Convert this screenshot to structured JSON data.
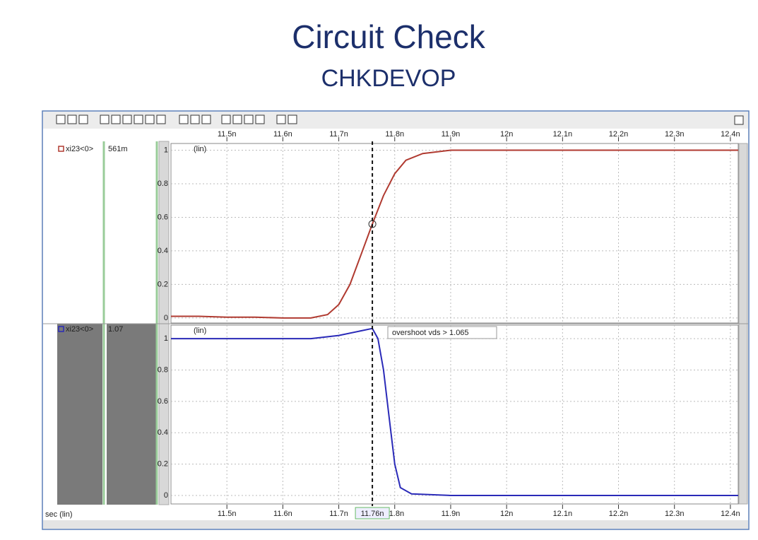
{
  "header": {
    "title": "Circuit Check",
    "subtitle": "CHKDEVOP"
  },
  "chart_data": [
    {
      "type": "line",
      "y_label": "(lin)",
      "x": [
        11.4,
        11.45,
        11.5,
        11.55,
        11.6,
        11.65,
        11.68,
        11.7,
        11.72,
        11.74,
        11.76,
        11.78,
        11.8,
        11.82,
        11.85,
        11.9,
        12.0,
        12.1,
        12.2,
        12.3,
        12.414
      ],
      "series": [
        {
          "name": "xi23<0>",
          "readout": "561m",
          "color": "#b03a30",
          "values": [
            0.01,
            0.01,
            0.005,
            0.005,
            0.0,
            0.0,
            0.02,
            0.08,
            0.2,
            0.38,
            0.56,
            0.73,
            0.86,
            0.94,
            0.98,
            1.0,
            1.0,
            1.0,
            1.0,
            1.0,
            1.0
          ]
        }
      ],
      "xlim": [
        11.4,
        12.414
      ],
      "xticks": [
        {
          "value": 11.5,
          "label": "11.5n"
        },
        {
          "value": 11.6,
          "label": "11.6n"
        },
        {
          "value": 11.7,
          "label": "11.7n"
        },
        {
          "value": 11.8,
          "label": "11.8n"
        },
        {
          "value": 11.9,
          "label": "11.9n"
        },
        {
          "value": 12.0,
          "label": "12n"
        },
        {
          "value": 12.1,
          "label": "12.1n"
        },
        {
          "value": 12.2,
          "label": "12.2n"
        },
        {
          "value": 12.3,
          "label": "12.3n"
        },
        {
          "value": 12.4,
          "label": "12.4n"
        }
      ],
      "ylim": [
        -0.03,
        1.04
      ],
      "yticks": [
        0,
        0.2,
        0.4,
        0.6,
        0.8,
        1
      ],
      "grid": true
    },
    {
      "type": "line",
      "y_label": "(lin)",
      "x_label": "sec (lin)",
      "x": [
        11.4,
        11.5,
        11.6,
        11.65,
        11.7,
        11.74,
        11.76,
        11.77,
        11.78,
        11.79,
        11.8,
        11.81,
        11.83,
        11.9,
        12.0,
        12.4,
        12.414
      ],
      "series": [
        {
          "name": "xi23<0>",
          "readout": "1.07",
          "color": "#2a2ab8",
          "values": [
            1.0,
            1.0,
            1.0,
            1.0,
            1.02,
            1.05,
            1.065,
            1.0,
            0.8,
            0.5,
            0.2,
            0.05,
            0.01,
            0.0,
            0.0,
            0.0,
            0.0
          ]
        }
      ],
      "xlim": [
        11.4,
        12.414
      ],
      "xticks": [
        {
          "value": 11.5,
          "label": "11.5n"
        },
        {
          "value": 11.6,
          "label": "11.6n"
        },
        {
          "value": 11.7,
          "label": "11.7n"
        },
        {
          "value": 11.8,
          "label": "11.8n"
        },
        {
          "value": 11.9,
          "label": "11.9n"
        },
        {
          "value": 12.0,
          "label": "12n"
        },
        {
          "value": 12.1,
          "label": "12.1n"
        },
        {
          "value": 12.2,
          "label": "12.2n"
        },
        {
          "value": 12.3,
          "label": "12.3n"
        },
        {
          "value": 12.4,
          "label": "12.4n"
        }
      ],
      "ylim": [
        -0.054,
        1.086
      ],
      "yticks": [
        0,
        0.2,
        0.4,
        0.6,
        0.8,
        1
      ],
      "grid": true,
      "cursor": {
        "value": 11.76,
        "label": "11.76n"
      },
      "annotation": "overshoot vds > 1.065"
    }
  ]
}
